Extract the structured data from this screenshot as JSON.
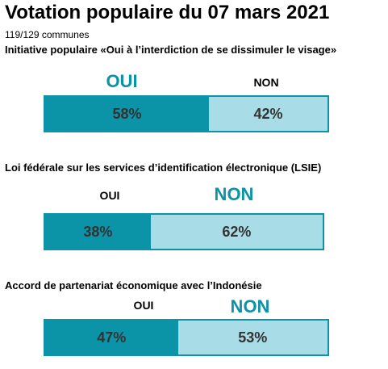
{
  "header": {
    "title": "Votation populaire du 07 mars 2021",
    "subtitle": "119/129 communes"
  },
  "colors": {
    "oui": "#0b93a8",
    "non": "#a8dce6",
    "border": "#0b93a8",
    "winner_text": "#0b93a8"
  },
  "chart_data": [
    {
      "type": "bar",
      "title": "Initiative populaire «Oui à l’interdiction de se dissimuler le visage»",
      "categories": [
        "OUI",
        "NON"
      ],
      "values": [
        58,
        42
      ],
      "value_labels": [
        "58%",
        "42%"
      ],
      "winner": "OUI"
    },
    {
      "type": "bar",
      "title": "Loi fédérale sur les services d’identification électronique (LSIE)",
      "categories": [
        "OUI",
        "NON"
      ],
      "values": [
        38,
        62
      ],
      "value_labels": [
        "38%",
        "62%"
      ],
      "winner": "NON"
    },
    {
      "type": "bar",
      "title": "Accord de partenariat économique avec l’Indonésie",
      "categories": [
        "OUI",
        "NON"
      ],
      "values": [
        47,
        53
      ],
      "value_labels": [
        "47%",
        "53%"
      ],
      "winner": "NON"
    }
  ]
}
